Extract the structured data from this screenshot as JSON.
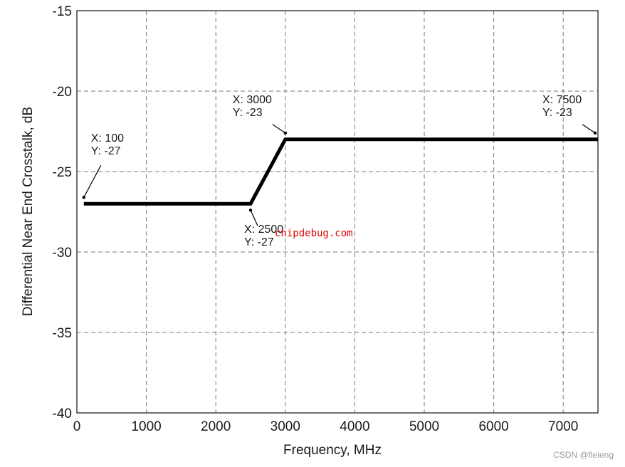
{
  "chart_data": {
    "type": "line",
    "xlabel": "Frequency, MHz",
    "ylabel": "Differential Near End Crosstalk, dB",
    "xlim": [
      0,
      7500
    ],
    "ylim": [
      -40,
      -15
    ],
    "x_ticks": [
      0,
      1000,
      2000,
      3000,
      4000,
      5000,
      6000,
      7000
    ],
    "y_ticks": [
      -15,
      -20,
      -25,
      -30,
      -35,
      -40
    ],
    "grid": true,
    "series": [
      {
        "x": [
          100,
          2500,
          3000,
          7500
        ],
        "y": [
          -27,
          -27,
          -23,
          -23
        ]
      }
    ],
    "annotations": [
      {
        "lines": [
          "X: 100",
          "Y: -27"
        ],
        "x": 100,
        "y": -27,
        "placement": "above"
      },
      {
        "lines": [
          "X: 2500",
          "Y: -27"
        ],
        "x": 2500,
        "y": -27,
        "placement": "below"
      },
      {
        "lines": [
          "X: 3000",
          "Y: -23"
        ],
        "x": 3000,
        "y": -23,
        "placement": "above-left"
      },
      {
        "lines": [
          "X: 7500",
          "Y: -23"
        ],
        "x": 7500,
        "y": -23,
        "placement": "above-left"
      }
    ]
  },
  "watermark": "chipdebug.com",
  "credit": "CSDN @fleieng",
  "colors": {
    "line": "#000000",
    "grid": "#7a7a7a",
    "watermark": "#e00000"
  }
}
